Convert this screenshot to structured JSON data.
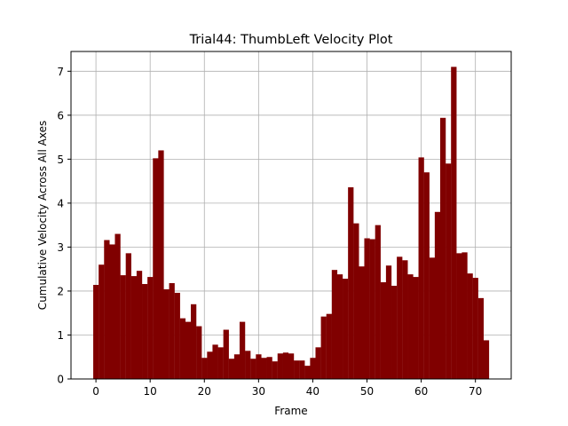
{
  "chart_data": {
    "type": "bar",
    "title": "Trial44: ThumbLeft Velocity Plot",
    "xlabel": "Frame",
    "ylabel": "Cumulative Velocity Across All Axes",
    "xlim": [
      -4.6,
      76.6
    ],
    "ylim": [
      0,
      7.45
    ],
    "xticks": [
      0,
      10,
      20,
      30,
      40,
      50,
      60,
      70
    ],
    "yticks": [
      0,
      1,
      2,
      3,
      4,
      5,
      6,
      7
    ],
    "grid": true,
    "bar_color": "#800000",
    "x": [
      0,
      1,
      2,
      3,
      4,
      5,
      6,
      7,
      8,
      9,
      10,
      11,
      12,
      13,
      14,
      15,
      16,
      17,
      18,
      19,
      20,
      21,
      22,
      23,
      24,
      25,
      26,
      27,
      28,
      29,
      30,
      31,
      32,
      33,
      34,
      35,
      36,
      37,
      38,
      39,
      40,
      41,
      42,
      43,
      44,
      45,
      46,
      47,
      48,
      49,
      50,
      51,
      52,
      53,
      54,
      55,
      56,
      57,
      58,
      59,
      60,
      61,
      62,
      63,
      64,
      65,
      66,
      67,
      68,
      69,
      70,
      71,
      72
    ],
    "values": [
      2.14,
      2.6,
      3.16,
      3.06,
      3.3,
      2.36,
      2.86,
      2.34,
      2.46,
      2.16,
      2.32,
      5.02,
      5.2,
      2.04,
      2.18,
      1.96,
      1.38,
      1.3,
      1.7,
      1.2,
      0.48,
      0.62,
      0.78,
      0.72,
      1.12,
      0.46,
      0.56,
      1.3,
      0.64,
      0.46,
      0.56,
      0.48,
      0.5,
      0.4,
      0.58,
      0.6,
      0.58,
      0.42,
      0.42,
      0.3,
      0.48,
      0.72,
      1.42,
      1.48,
      2.48,
      2.38,
      2.28,
      4.36,
      3.54,
      2.56,
      3.2,
      3.18,
      3.5,
      2.2,
      2.58,
      2.12,
      2.78,
      2.7,
      2.38,
      2.32,
      5.04,
      4.7,
      2.76,
      3.8,
      5.94,
      4.9,
      7.1,
      2.86,
      2.88,
      2.4,
      2.3,
      1.84,
      0.88
    ]
  }
}
